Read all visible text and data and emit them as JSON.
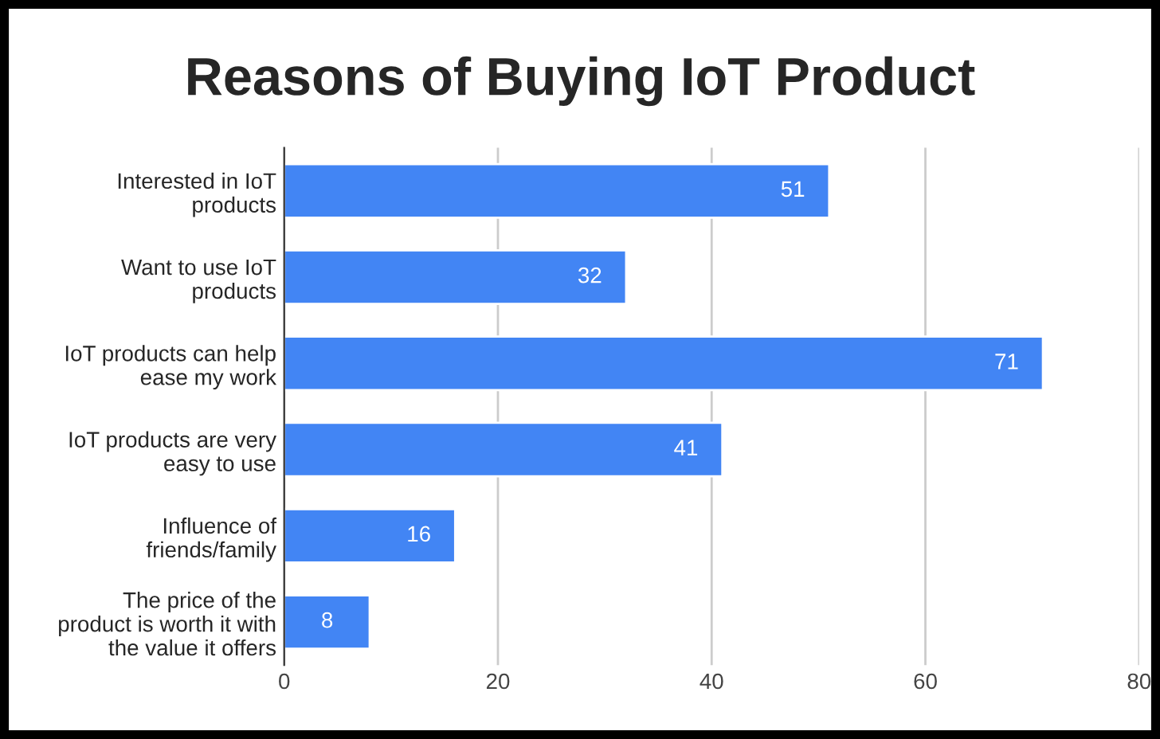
{
  "chart_data": {
    "type": "bar",
    "orientation": "horizontal",
    "title": "Reasons of Buying IoT Product",
    "categories": [
      "Interested in IoT\nproducts",
      "Want to use IoT\nproducts",
      "IoT products can help\nease my work",
      "IoT products are very\neasy to use",
      "Influence of\nfriends/family",
      "The price of the\nproduct is worth it with\nthe value it offers"
    ],
    "values": [
      51,
      32,
      71,
      41,
      16,
      8
    ],
    "color": "#4285f4",
    "xlim": [
      0,
      80
    ],
    "xticks": [
      0,
      20,
      40,
      60,
      80
    ],
    "grid": "x",
    "data_labels": true,
    "legend": false
  }
}
